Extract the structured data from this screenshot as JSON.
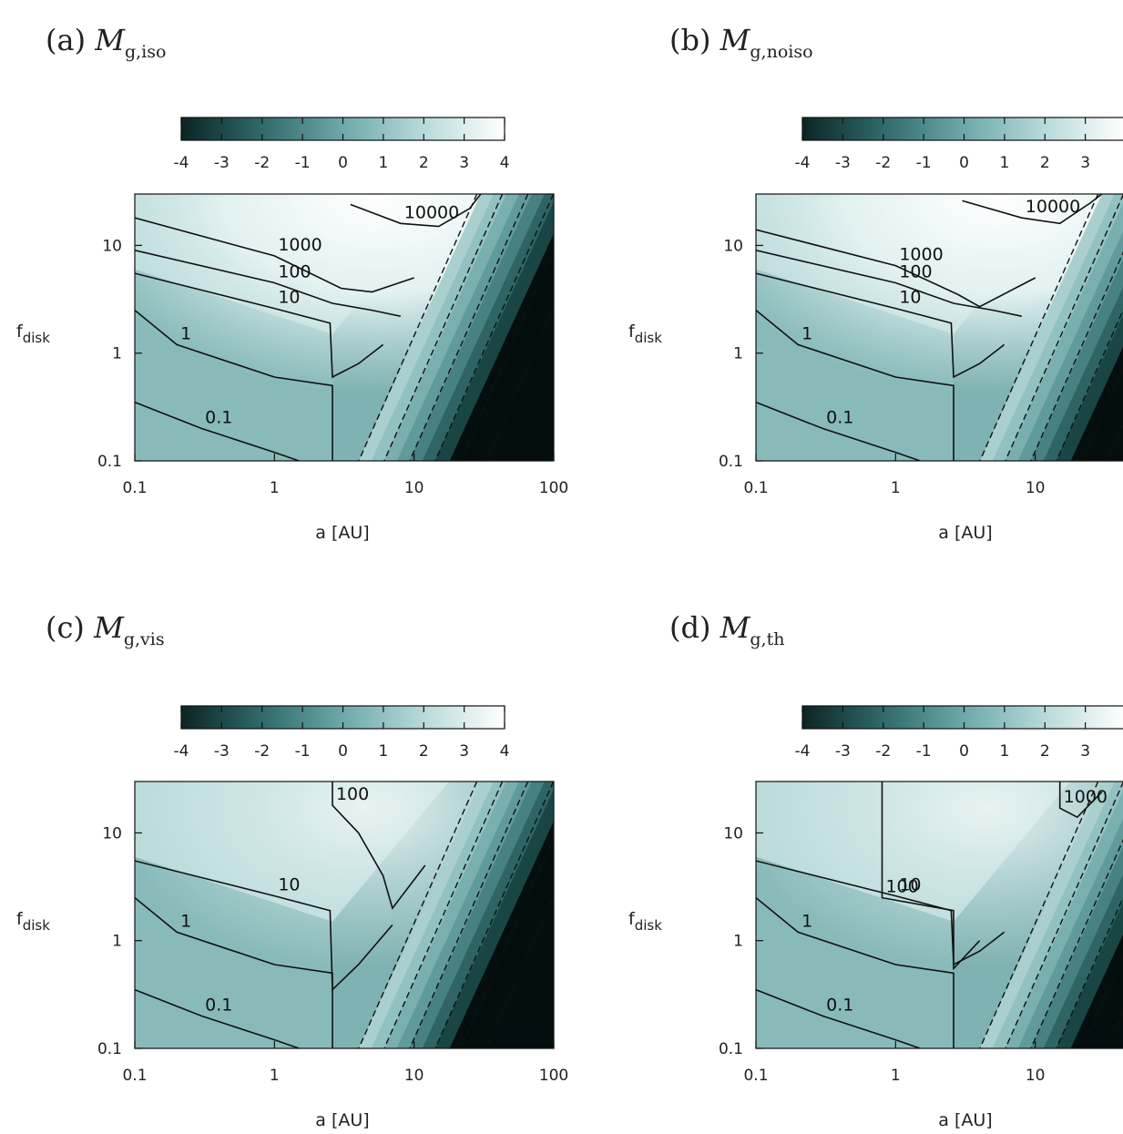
{
  "chart_data": [
    {
      "type": "heatmap",
      "panel": "(a)",
      "title_main": "M",
      "title_sub": "g,iso",
      "xlabel": "a [AU]",
      "ylabel": "f",
      "ylabel_sub": "disk",
      "xscale": "log",
      "yscale": "log",
      "xlim": [
        0.1,
        100
      ],
      "ylim": [
        0.1,
        30
      ],
      "xticks": [
        "0.1",
        "1",
        "10",
        "100"
      ],
      "yticks": [
        "0.1",
        "1",
        "10"
      ],
      "colorbar": {
        "min": -4,
        "max": 4,
        "ticks": [
          "-4",
          "-3",
          "-2",
          "-1",
          "0",
          "1",
          "2",
          "3",
          "4"
        ],
        "placement": "top"
      },
      "contours": [
        {
          "label": "0.1",
          "points": [
            [
              0.1,
              0.35
            ],
            [
              0.3,
              0.2
            ],
            [
              1.0,
              0.12
            ],
            [
              1.5,
              0.1
            ]
          ]
        },
        {
          "label": "1",
          "points": [
            [
              0.1,
              2.5
            ],
            [
              0.2,
              1.2
            ],
            [
              1.0,
              0.6
            ],
            [
              2.6,
              0.5
            ],
            [
              2.6,
              0.1
            ]
          ]
        },
        {
          "label": "10",
          "points": [
            [
              0.1,
              5.5
            ],
            [
              1.0,
              2.6
            ],
            [
              2.5,
              1.9
            ],
            [
              2.6,
              0.6
            ],
            [
              4.0,
              0.8
            ],
            [
              6.0,
              1.2
            ]
          ]
        },
        {
          "label": "100",
          "points": [
            [
              0.1,
              9.0
            ],
            [
              1.0,
              4.5
            ],
            [
              2.6,
              2.9
            ],
            [
              5.0,
              2.5
            ],
            [
              8.0,
              2.2
            ]
          ]
        },
        {
          "label": "1000",
          "points": [
            [
              0.1,
              18.0
            ],
            [
              1.0,
              8.0
            ],
            [
              3.0,
              4.0
            ],
            [
              5.0,
              3.7
            ],
            [
              10.0,
              5.0
            ]
          ]
        },
        {
          "label": "10000",
          "points": [
            [
              3.5,
              24.0
            ],
            [
              8.0,
              16.0
            ],
            [
              15.0,
              15.0
            ],
            [
              25.0,
              22.0
            ],
            [
              30.0,
              30.0
            ]
          ]
        }
      ]
    },
    {
      "type": "heatmap",
      "panel": "(b)",
      "title_main": "M",
      "title_sub": "g,noiso",
      "xlabel": "a [AU]",
      "ylabel": "f",
      "ylabel_sub": "disk",
      "xscale": "log",
      "yscale": "log",
      "xlim": [
        0.1,
        100
      ],
      "ylim": [
        0.1,
        30
      ],
      "xticks": [
        "0.1",
        "1",
        "10"
      ],
      "yticks": [
        "0.1",
        "1",
        "10"
      ],
      "colorbar": {
        "min": -4,
        "max": 4,
        "ticks": [
          "-4",
          "-3",
          "-2",
          "-1",
          "0",
          "1",
          "2",
          "3"
        ],
        "placement": "top"
      },
      "contours": [
        {
          "label": "0.1",
          "points": [
            [
              0.1,
              0.35
            ],
            [
              0.3,
              0.2
            ],
            [
              1.0,
              0.12
            ],
            [
              1.5,
              0.1
            ]
          ]
        },
        {
          "label": "1",
          "points": [
            [
              0.1,
              2.5
            ],
            [
              0.2,
              1.2
            ],
            [
              1.0,
              0.6
            ],
            [
              2.6,
              0.5
            ],
            [
              2.6,
              0.1
            ]
          ]
        },
        {
          "label": "10",
          "points": [
            [
              0.1,
              5.5
            ],
            [
              1.0,
              2.6
            ],
            [
              2.5,
              1.9
            ],
            [
              2.6,
              0.6
            ],
            [
              4.0,
              0.8
            ],
            [
              6.0,
              1.2
            ]
          ]
        },
        {
          "label": "100",
          "points": [
            [
              0.1,
              9.0
            ],
            [
              1.0,
              4.5
            ],
            [
              2.6,
              2.9
            ],
            [
              5.0,
              2.5
            ],
            [
              8.0,
              2.2
            ]
          ]
        },
        {
          "label": "1000",
          "points": [
            [
              0.1,
              14.0
            ],
            [
              1.0,
              6.5
            ],
            [
              2.8,
              3.5
            ],
            [
              4.0,
              2.7
            ],
            [
              10.0,
              5.0
            ]
          ]
        },
        {
          "label": "10000",
          "points": [
            [
              3.0,
              26.0
            ],
            [
              8.0,
              18.0
            ],
            [
              15.0,
              16.0
            ],
            [
              25.0,
              25.0
            ],
            [
              30.0,
              30.0
            ]
          ]
        }
      ]
    },
    {
      "type": "heatmap",
      "panel": "(c)",
      "title_main": "M",
      "title_sub": "g,vis",
      "xlabel": "a [AU]",
      "ylabel": "f",
      "ylabel_sub": "disk",
      "xscale": "log",
      "yscale": "log",
      "xlim": [
        0.1,
        100
      ],
      "ylim": [
        0.1,
        30
      ],
      "xticks": [
        "0.1",
        "1",
        "10",
        "100"
      ],
      "yticks": [
        "0.1",
        "1",
        "10"
      ],
      "colorbar": {
        "min": -4,
        "max": 4,
        "ticks": [
          "-4",
          "-3",
          "-2",
          "-1",
          "0",
          "1",
          "2",
          "3",
          "4"
        ],
        "placement": "top"
      },
      "contours": [
        {
          "label": "0.1",
          "points": [
            [
              0.1,
              0.35
            ],
            [
              0.3,
              0.2
            ],
            [
              1.0,
              0.12
            ],
            [
              1.5,
              0.1
            ]
          ]
        },
        {
          "label": "1",
          "points": [
            [
              0.1,
              2.5
            ],
            [
              0.2,
              1.2
            ],
            [
              1.0,
              0.6
            ],
            [
              2.6,
              0.5
            ],
            [
              2.6,
              0.1
            ]
          ]
        },
        {
          "label": "10",
          "points": [
            [
              0.1,
              5.5
            ],
            [
              1.0,
              2.6
            ],
            [
              2.5,
              1.9
            ],
            [
              2.6,
              0.35
            ],
            [
              4.0,
              0.6
            ],
            [
              7.0,
              1.4
            ]
          ]
        },
        {
          "label": "100",
          "points": [
            [
              2.6,
              30.0
            ],
            [
              2.6,
              18.0
            ],
            [
              4.0,
              10.0
            ],
            [
              6.0,
              4.0
            ],
            [
              7.0,
              2.0
            ],
            [
              12.0,
              5.0
            ]
          ]
        }
      ]
    },
    {
      "type": "heatmap",
      "panel": "(d)",
      "title_main": "M",
      "title_sub": "g,th",
      "xlabel": "a [AU]",
      "ylabel": "f",
      "ylabel_sub": "disk",
      "xscale": "log",
      "yscale": "log",
      "xlim": [
        0.1,
        100
      ],
      "ylim": [
        0.1,
        30
      ],
      "xticks": [
        "0.1",
        "1",
        "10"
      ],
      "yticks": [
        "0.1",
        "1",
        "10"
      ],
      "colorbar": {
        "min": -4,
        "max": 4,
        "ticks": [
          "-4",
          "-3",
          "-2",
          "-1",
          "0",
          "1",
          "2",
          "3"
        ],
        "placement": "top"
      },
      "contours": [
        {
          "label": "0.1",
          "points": [
            [
              0.1,
              0.35
            ],
            [
              0.3,
              0.2
            ],
            [
              1.0,
              0.12
            ],
            [
              1.5,
              0.1
            ]
          ]
        },
        {
          "label": "1",
          "points": [
            [
              0.1,
              2.5
            ],
            [
              0.2,
              1.2
            ],
            [
              1.0,
              0.6
            ],
            [
              2.6,
              0.5
            ],
            [
              2.6,
              0.1
            ]
          ]
        },
        {
          "label": "10",
          "points": [
            [
              0.1,
              5.5
            ],
            [
              1.0,
              2.6
            ],
            [
              2.5,
              1.9
            ],
            [
              2.6,
              0.6
            ],
            [
              4.0,
              0.8
            ],
            [
              6.0,
              1.2
            ]
          ]
        },
        {
          "label": "100",
          "points": [
            [
              0.8,
              30.0
            ],
            [
              0.8,
              2.5
            ],
            [
              2.6,
              1.9
            ],
            [
              2.6,
              0.55
            ],
            [
              4.0,
              1.0
            ]
          ]
        },
        {
          "label": "1000",
          "points": [
            [
              15.0,
              30.0
            ],
            [
              15.0,
              17.0
            ],
            [
              20.0,
              14.0
            ],
            [
              30.0,
              24.0
            ]
          ]
        }
      ]
    }
  ]
}
